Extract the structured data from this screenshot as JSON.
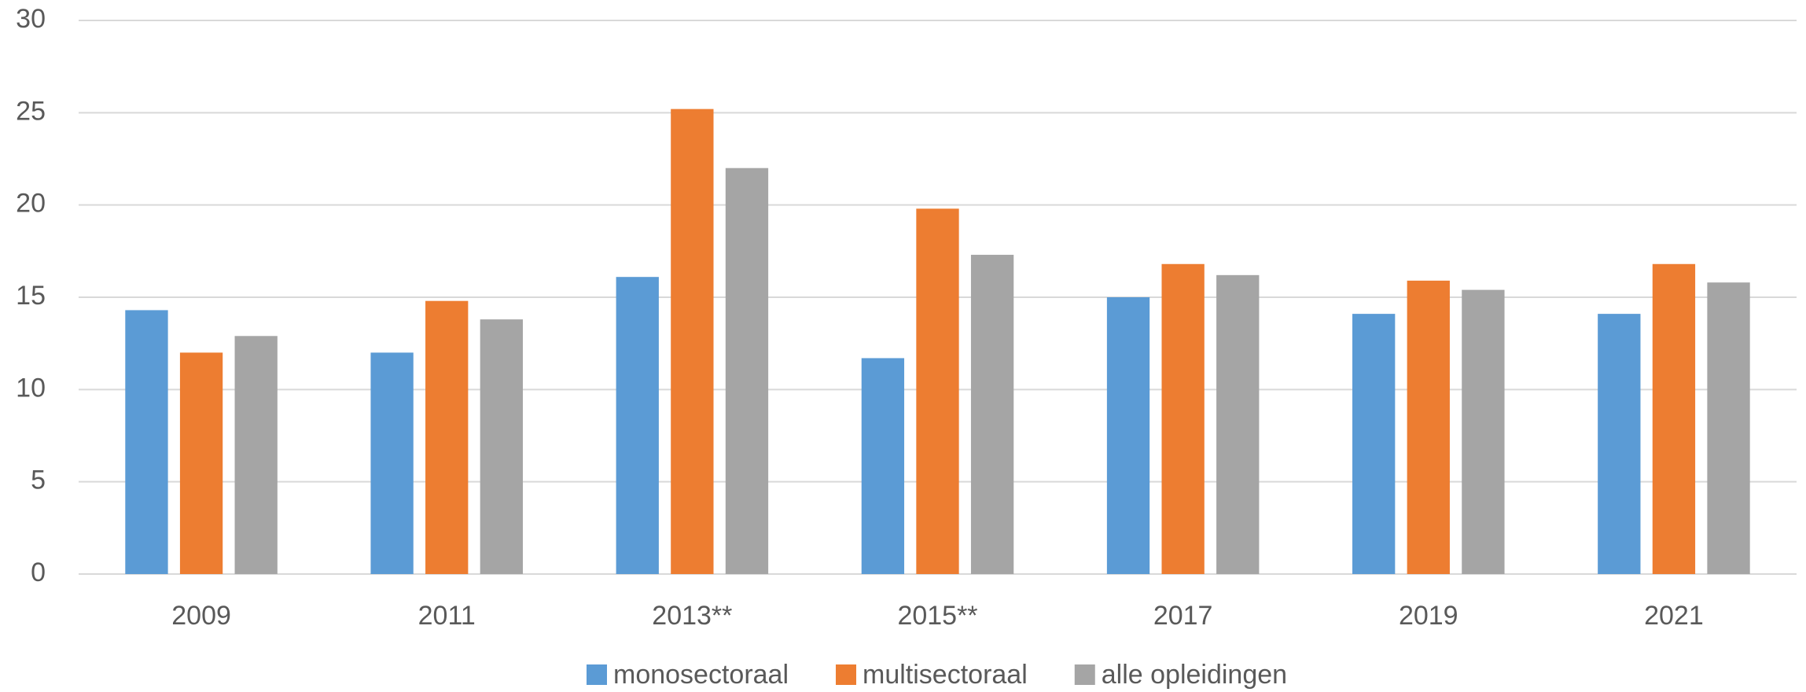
{
  "chart_data": {
    "type": "bar",
    "categories": [
      "2009",
      "2011",
      "2013**",
      "2015**",
      "2017",
      "2019",
      "2021"
    ],
    "series": [
      {
        "name": "monosectoraal",
        "color": "#5b9bd5",
        "values": [
          14.3,
          12.0,
          16.1,
          11.7,
          15.0,
          14.1,
          14.1
        ]
      },
      {
        "name": "multisectoraal",
        "color": "#ed7d31",
        "values": [
          12.0,
          14.8,
          25.2,
          19.8,
          16.8,
          15.9,
          16.8
        ]
      },
      {
        "name": "alle opleidingen",
        "color": "#a5a5a5",
        "values": [
          12.9,
          13.8,
          22.0,
          17.3,
          16.2,
          15.4,
          15.8
        ]
      }
    ],
    "ylim": [
      0,
      30
    ],
    "yticks": [
      0,
      5,
      10,
      15,
      20,
      25,
      30
    ],
    "grid": true,
    "legend": "bottom"
  }
}
